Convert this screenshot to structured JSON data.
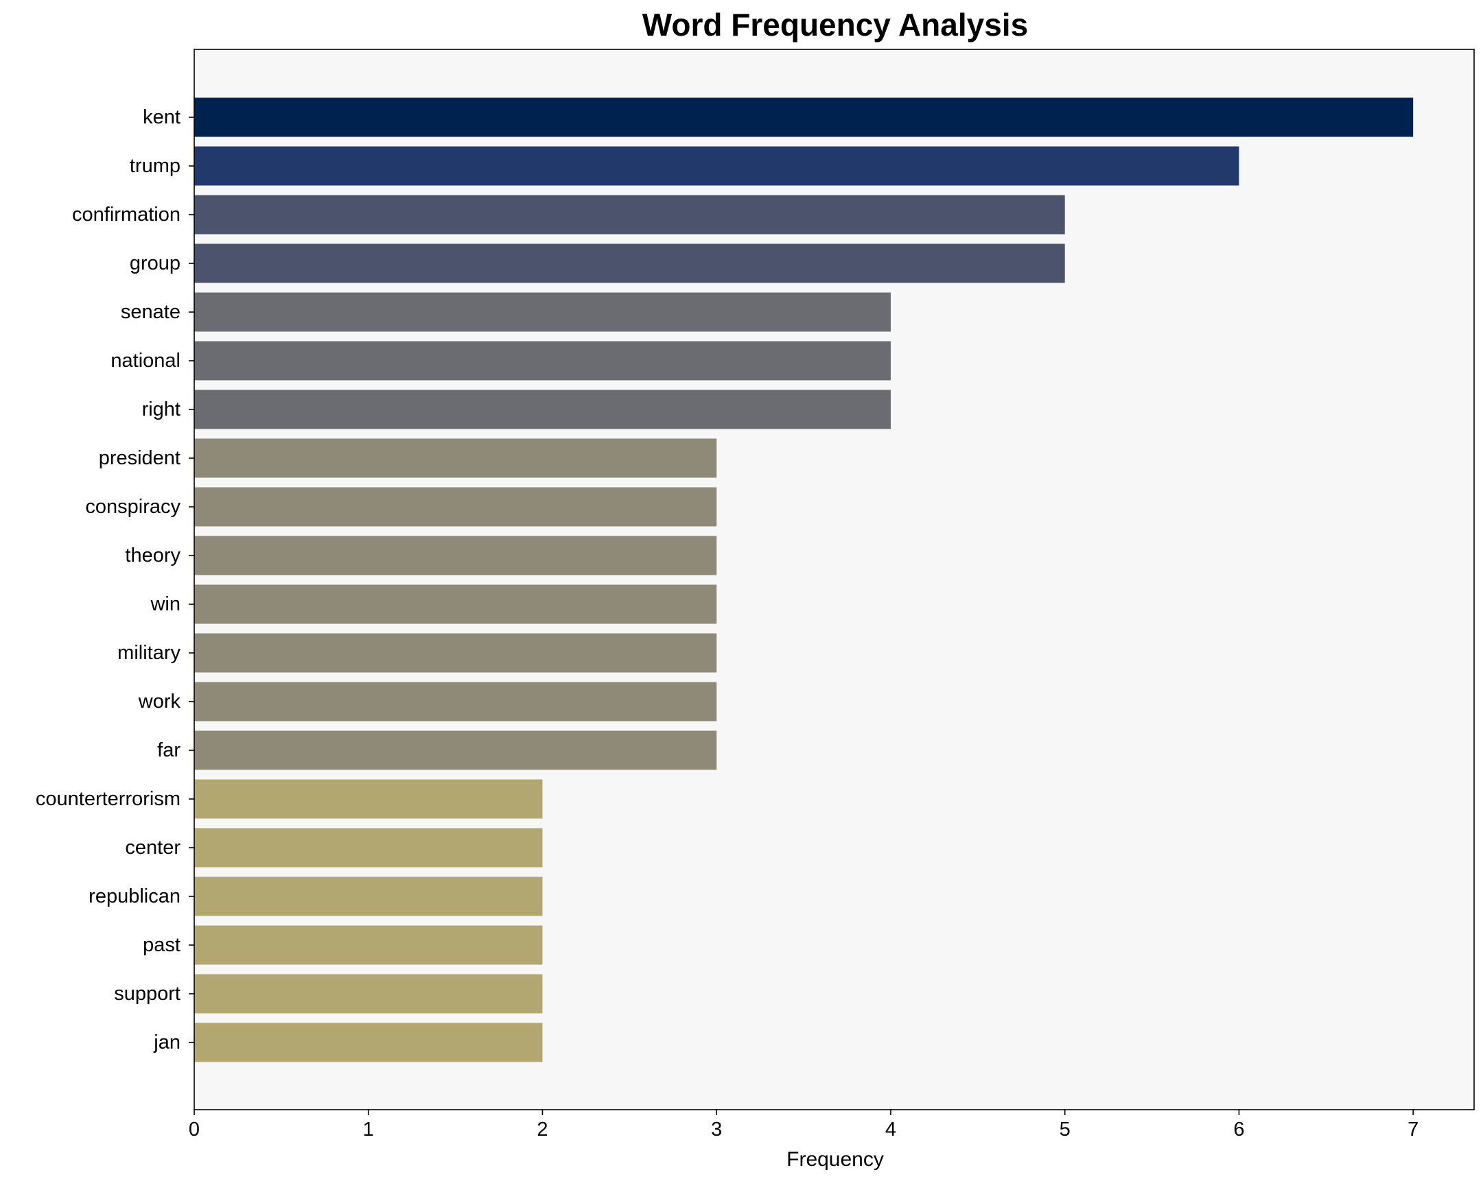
{
  "chart_data": {
    "type": "bar",
    "orientation": "horizontal",
    "title": "Word Frequency Analysis",
    "xlabel": "Frequency",
    "ylabel": "",
    "xlim": [
      0,
      7.35
    ],
    "xticks": [
      "0",
      "1",
      "2",
      "3",
      "4",
      "5",
      "6",
      "7"
    ],
    "grid": false,
    "legend": "none",
    "plot_background": "#f7f7f7",
    "categories": [
      "kent",
      "trump",
      "confirmation",
      "group",
      "senate",
      "national",
      "right",
      "president",
      "conspiracy",
      "theory",
      "win",
      "military",
      "work",
      "far",
      "counterterrorism",
      "center",
      "republican",
      "past",
      "support",
      "jan"
    ],
    "values": [
      7,
      6,
      5,
      5,
      4,
      4,
      4,
      3,
      3,
      3,
      3,
      3,
      3,
      3,
      2,
      2,
      2,
      2,
      2,
      2
    ],
    "colors": [
      "#00224e",
      "#213a6b",
      "#4b546c",
      "#4b546c",
      "#6b6c71",
      "#6b6c71",
      "#6b6c71",
      "#8f8977",
      "#8f8977",
      "#8f8977",
      "#8f8977",
      "#8f8977",
      "#8f8977",
      "#8f8977",
      "#b2a770",
      "#b2a770",
      "#b2a770",
      "#b2a770",
      "#b2a770",
      "#b2a770"
    ]
  }
}
